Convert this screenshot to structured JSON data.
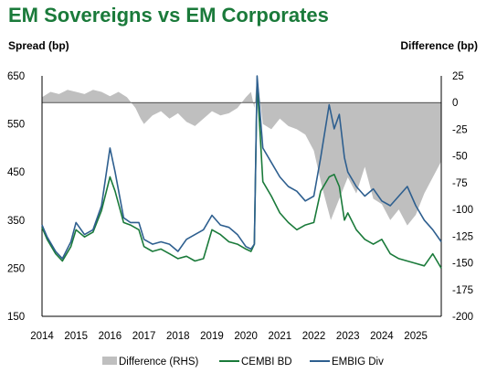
{
  "title": "EM Sovereigns vs EM Corporates",
  "chart_data": {
    "type": "line",
    "ylabel": "Spread (bp)",
    "y2label": "Difference (bp)",
    "ylim": [
      150,
      650
    ],
    "y2lim": [
      -200,
      25
    ],
    "yticks": [
      150,
      250,
      350,
      450,
      550,
      650
    ],
    "y2ticks": [
      25,
      0,
      -25,
      -50,
      -75,
      -100,
      -125,
      -150,
      -175,
      -200
    ],
    "xlim": [
      2014.0,
      2025.75
    ],
    "xticks": [
      2014,
      2015,
      2016,
      2017,
      2018,
      2019,
      2020,
      2021,
      2022,
      2023,
      2024,
      2025
    ],
    "legend_position": "bottom",
    "colors": {
      "difference": "#bfbfbf",
      "cembi": "#1a7a3a",
      "embig": "#2e5f8f"
    },
    "series": [
      {
        "name": "Difference (RHS)",
        "type": "area",
        "axis": "right",
        "x": [
          2014.0,
          2014.25,
          2014.5,
          2014.75,
          2015.0,
          2015.25,
          2015.5,
          2015.75,
          2016.0,
          2016.25,
          2016.5,
          2016.75,
          2016.9,
          2017.0,
          2017.25,
          2017.5,
          2017.75,
          2018.0,
          2018.25,
          2018.5,
          2018.75,
          2019.0,
          2019.25,
          2019.5,
          2019.75,
          2020.0,
          2020.15,
          2020.25,
          2020.33,
          2020.5,
          2020.75,
          2021.0,
          2021.25,
          2021.5,
          2021.75,
          2022.0,
          2022.25,
          2022.5,
          2022.75,
          2023.0,
          2023.25,
          2023.5,
          2023.75,
          2024.0,
          2024.25,
          2024.5,
          2024.75,
          2025.0,
          2025.25,
          2025.5,
          2025.75
        ],
        "values": [
          5,
          10,
          8,
          12,
          10,
          8,
          12,
          10,
          6,
          10,
          5,
          -5,
          -15,
          -20,
          -12,
          -8,
          -15,
          -10,
          -18,
          -22,
          -15,
          -8,
          -12,
          -10,
          -5,
          5,
          10,
          -5,
          25,
          -20,
          -25,
          -15,
          -22,
          -25,
          -30,
          -45,
          -80,
          -110,
          -90,
          -70,
          -85,
          -60,
          -90,
          -95,
          -110,
          -100,
          -115,
          -105,
          -85,
          -70,
          -55
        ]
      },
      {
        "name": "CEMBI BD",
        "type": "line",
        "axis": "left",
        "x": [
          2014.0,
          2014.15,
          2014.4,
          2014.6,
          2014.85,
          2015.0,
          2015.25,
          2015.5,
          2015.75,
          2016.0,
          2016.15,
          2016.4,
          2016.6,
          2016.85,
          2017.0,
          2017.25,
          2017.5,
          2017.75,
          2018.0,
          2018.25,
          2018.5,
          2018.75,
          2019.0,
          2019.25,
          2019.5,
          2019.75,
          2020.0,
          2020.15,
          2020.25,
          2020.33,
          2020.5,
          2020.75,
          2021.0,
          2021.25,
          2021.5,
          2021.75,
          2022.0,
          2022.2,
          2022.45,
          2022.6,
          2022.75,
          2022.9,
          2023.0,
          2023.25,
          2023.5,
          2023.75,
          2024.0,
          2024.25,
          2024.5,
          2024.75,
          2025.0,
          2025.25,
          2025.5,
          2025.75
        ],
        "values": [
          335,
          310,
          280,
          265,
          295,
          330,
          315,
          325,
          370,
          440,
          410,
          345,
          340,
          330,
          295,
          285,
          290,
          280,
          270,
          275,
          265,
          270,
          330,
          320,
          305,
          300,
          290,
          285,
          300,
          640,
          430,
          400,
          365,
          345,
          330,
          340,
          345,
          410,
          440,
          445,
          420,
          350,
          365,
          330,
          310,
          300,
          310,
          280,
          270,
          265,
          260,
          255,
          280,
          250
        ]
      },
      {
        "name": "EMBIG Div",
        "type": "line",
        "axis": "left",
        "x": [
          2014.0,
          2014.15,
          2014.4,
          2014.6,
          2014.85,
          2015.0,
          2015.25,
          2015.5,
          2015.75,
          2016.0,
          2016.15,
          2016.4,
          2016.6,
          2016.85,
          2017.0,
          2017.25,
          2017.5,
          2017.75,
          2018.0,
          2018.25,
          2018.5,
          2018.75,
          2019.0,
          2019.25,
          2019.5,
          2019.75,
          2020.0,
          2020.15,
          2020.25,
          2020.33,
          2020.5,
          2020.75,
          2021.0,
          2021.25,
          2021.5,
          2021.75,
          2022.0,
          2022.2,
          2022.45,
          2022.6,
          2022.75,
          2022.9,
          2023.0,
          2023.25,
          2023.5,
          2023.75,
          2024.0,
          2024.25,
          2024.5,
          2024.75,
          2025.0,
          2025.25,
          2025.5,
          2025.75
        ],
        "values": [
          340,
          315,
          285,
          270,
          305,
          345,
          320,
          330,
          380,
          500,
          450,
          355,
          345,
          345,
          310,
          300,
          305,
          300,
          285,
          310,
          320,
          330,
          360,
          340,
          335,
          320,
          295,
          290,
          300,
          650,
          500,
          470,
          440,
          420,
          410,
          390,
          400,
          480,
          590,
          540,
          570,
          480,
          450,
          420,
          400,
          415,
          390,
          380,
          400,
          420,
          380,
          350,
          330,
          305
        ]
      }
    ]
  }
}
